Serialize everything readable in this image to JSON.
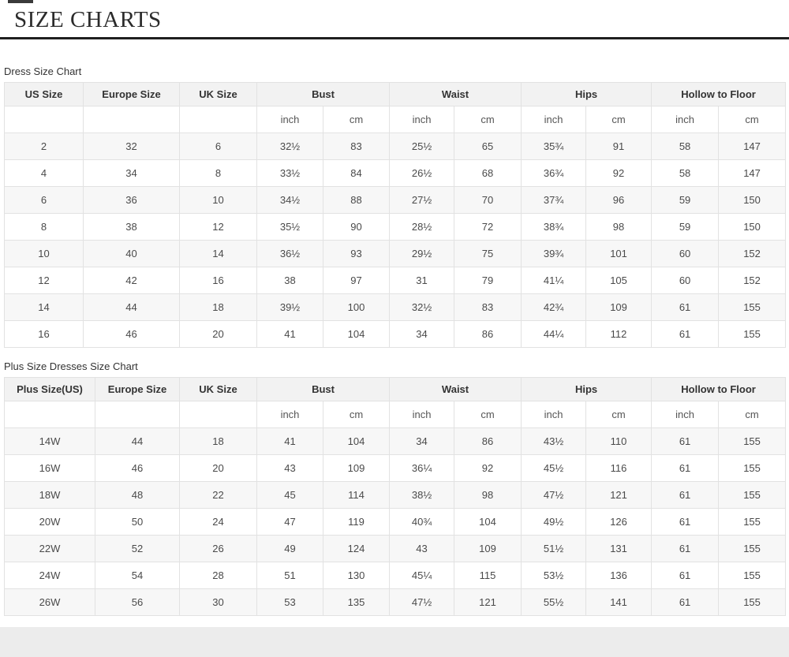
{
  "page": {
    "title": "SIZE CHARTS"
  },
  "units": {
    "inch": "inch",
    "cm": "cm"
  },
  "colors": {
    "border": "#e2e2e2",
    "header-bg": "#f2f2f2",
    "stripe": "#f7f7f7",
    "text": "#4a4a4a",
    "head-text": "#333333",
    "rule": "#1f1f1f",
    "band": "#ececec"
  },
  "dress_chart": {
    "label": "Dress Size Chart",
    "columns": [
      "US Size",
      "Europe Size",
      "UK Size",
      "Bust",
      "Waist",
      "Hips",
      "Hollow to Floor"
    ],
    "rows": [
      [
        "2",
        "32",
        "6",
        "32½",
        "83",
        "25½",
        "65",
        "35¾",
        "91",
        "58",
        "147"
      ],
      [
        "4",
        "34",
        "8",
        "33½",
        "84",
        "26½",
        "68",
        "36¾",
        "92",
        "58",
        "147"
      ],
      [
        "6",
        "36",
        "10",
        "34½",
        "88",
        "27½",
        "70",
        "37¾",
        "96",
        "59",
        "150"
      ],
      [
        "8",
        "38",
        "12",
        "35½",
        "90",
        "28½",
        "72",
        "38¾",
        "98",
        "59",
        "150"
      ],
      [
        "10",
        "40",
        "14",
        "36½",
        "93",
        "29½",
        "75",
        "39¾",
        "101",
        "60",
        "152"
      ],
      [
        "12",
        "42",
        "16",
        "38",
        "97",
        "31",
        "79",
        "41¼",
        "105",
        "60",
        "152"
      ],
      [
        "14",
        "44",
        "18",
        "39½",
        "100",
        "32½",
        "83",
        "42¾",
        "109",
        "61",
        "155"
      ],
      [
        "16",
        "46",
        "20",
        "41",
        "104",
        "34",
        "86",
        "44¼",
        "112",
        "61",
        "155"
      ]
    ]
  },
  "plus_chart": {
    "label": "Plus Size Dresses Size Chart",
    "columns": [
      "Plus Size(US)",
      "Europe Size",
      "UK Size",
      "Bust",
      "Waist",
      "Hips",
      "Hollow to Floor"
    ],
    "rows": [
      [
        "14W",
        "44",
        "18",
        "41",
        "104",
        "34",
        "86",
        "43½",
        "110",
        "61",
        "155"
      ],
      [
        "16W",
        "46",
        "20",
        "43",
        "109",
        "36¼",
        "92",
        "45½",
        "116",
        "61",
        "155"
      ],
      [
        "18W",
        "48",
        "22",
        "45",
        "114",
        "38½",
        "98",
        "47½",
        "121",
        "61",
        "155"
      ],
      [
        "20W",
        "50",
        "24",
        "47",
        "119",
        "40¾",
        "104",
        "49½",
        "126",
        "61",
        "155"
      ],
      [
        "22W",
        "52",
        "26",
        "49",
        "124",
        "43",
        "109",
        "51½",
        "131",
        "61",
        "155"
      ],
      [
        "24W",
        "54",
        "28",
        "51",
        "130",
        "45¼",
        "115",
        "53½",
        "136",
        "61",
        "155"
      ],
      [
        "26W",
        "56",
        "30",
        "53",
        "135",
        "47½",
        "121",
        "55½",
        "141",
        "61",
        "155"
      ]
    ]
  }
}
